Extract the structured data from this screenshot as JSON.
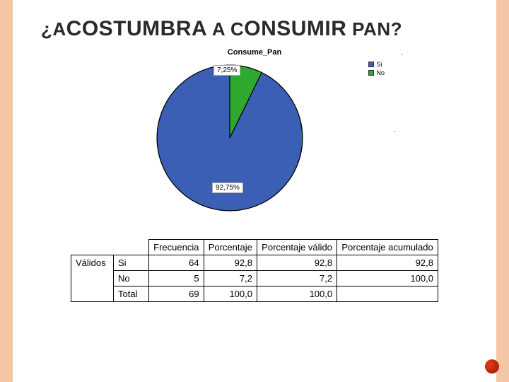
{
  "title_html": "¿A<span class='big'>COSTUMBRA</span> A C<span class='big'>ONSUMIR</span> PAN?",
  "chart": {
    "type": "pie",
    "title": "Consume_Pan",
    "slices": [
      {
        "label": "Si",
        "value": 92.75,
        "color": "#3b5fb5",
        "display": "92,75%"
      },
      {
        "label": "No",
        "value": 7.25,
        "color": "#2fa82f",
        "display": "7,25%"
      }
    ],
    "legend_items": [
      {
        "label": "Si",
        "color": "#3b5fb5"
      },
      {
        "label": "No",
        "color": "#2fa82f"
      }
    ],
    "pie_border": "#000000",
    "background": "#ffffff",
    "label_box_border": "#aaaaaa",
    "label_box_bg": "#ffffff"
  },
  "marks": {
    "top": ".",
    "mid": "."
  },
  "table": {
    "columns": [
      "",
      "",
      "Frecuencia",
      "Porcentaje",
      "Porcentaje válido",
      "Porcentaje acumulado"
    ],
    "group_label": "Válidos",
    "rows": [
      {
        "cat": "Si",
        "freq": "64",
        "pct": "92,8",
        "pctv": "92,8",
        "pcta": "92,8"
      },
      {
        "cat": "No",
        "freq": "5",
        "pct": "7,2",
        "pctv": "7,2",
        "pcta": "100,0"
      },
      {
        "cat": "Total",
        "freq": "69",
        "pct": "100,0",
        "pctv": "100,0",
        "pcta": ""
      }
    ]
  },
  "colors": {
    "side_bars": "#f5c6a5",
    "accent_dot": "#e53b1a"
  }
}
